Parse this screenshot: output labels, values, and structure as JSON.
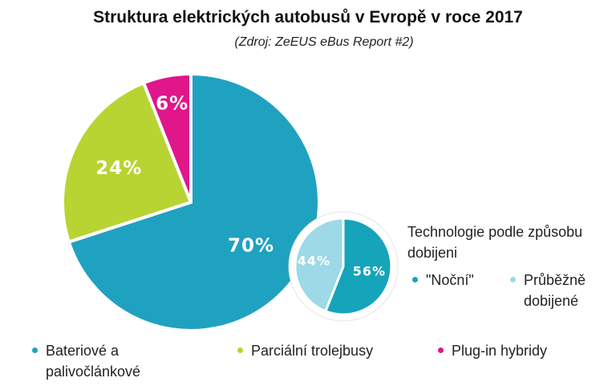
{
  "title": "Struktura elektrických autobusů v Evropě v roce 2017",
  "subtitle": "(Zdroj: ZeEUS eBus Report #2)",
  "chart_data": [
    {
      "type": "pie",
      "categories": [
        "Bateriové a palivočlánkové",
        "Parciální trolejbusy",
        "Plug-in hybridy"
      ],
      "values": [
        70,
        24,
        6
      ],
      "labels": [
        "70%",
        "24%",
        "6%"
      ],
      "colors": [
        "#1fa2c0",
        "#b8d432",
        "#e0168a"
      ]
    },
    {
      "type": "pie",
      "title": "Technologie podle způsobu dobijeni",
      "categories": [
        "\"Noční\"",
        "Průběžně dobijené"
      ],
      "values": [
        56,
        44
      ],
      "labels": [
        "56%",
        "44%"
      ],
      "colors": [
        "#16a4bb",
        "#9dd9e6"
      ]
    }
  ],
  "legend": {
    "main": [
      {
        "label": "Bateriové a palivočlánkové",
        "color": "#1fa2c0"
      },
      {
        "label": "Parciální trolejbusy",
        "color": "#b8d432"
      },
      {
        "label": "Plug-in hybridy",
        "color": "#e0168a"
      }
    ],
    "tech": [
      {
        "label": "\"Noční\"",
        "color": "#16a4bb"
      },
      {
        "label": "Průběžně dobijené",
        "color": "#9dd9e6"
      }
    ]
  }
}
